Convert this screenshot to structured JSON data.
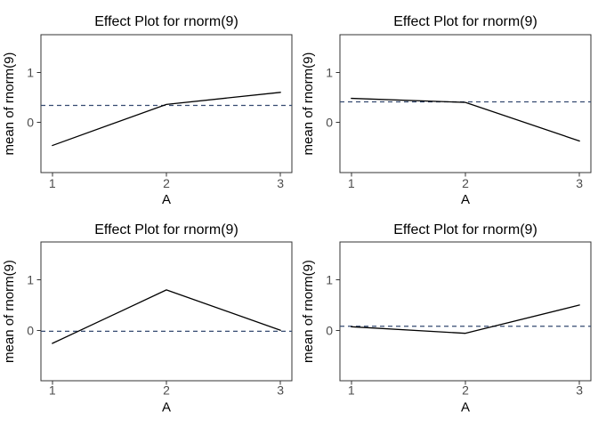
{
  "colors": {
    "background": "#ffffff",
    "panel_border": "#333333",
    "tick_mark": "#333333",
    "tick_label": "#4d4d4d",
    "text": "#000000",
    "effect_line": "#000000",
    "mean_line": "#344a70"
  },
  "chart_data": [
    {
      "type": "line",
      "panel": "top-left",
      "title": "Effect Plot for rnorm(9)",
      "xlabel": "A",
      "ylabel": "mean of rnorm(9)",
      "x": [
        1,
        2,
        3
      ],
      "xtick_labels": [
        "1",
        "2",
        "3"
      ],
      "values": [
        -0.46,
        0.36,
        0.6
      ],
      "mean_line": 0.34,
      "yticks": [
        0,
        1
      ],
      "ytick_labels": [
        "0",
        "1"
      ],
      "xlim": [
        0.9,
        3.1
      ],
      "ylim": [
        -1.0,
        1.75
      ],
      "grid": false,
      "legend": false,
      "line_style": "solid black",
      "mean_line_style": "dashed dark-blue horizontal"
    },
    {
      "type": "line",
      "panel": "top-right",
      "title": "Effect Plot for rnorm(9)",
      "xlabel": "A",
      "ylabel": "mean of rnorm(9)",
      "x": [
        1,
        2,
        3
      ],
      "xtick_labels": [
        "1",
        "2",
        "3"
      ],
      "values": [
        0.48,
        0.4,
        -0.37
      ],
      "mean_line": 0.41,
      "yticks": [
        0,
        1
      ],
      "ytick_labels": [
        "0",
        "1"
      ],
      "xlim": [
        0.9,
        3.1
      ],
      "ylim": [
        -1.0,
        1.75
      ],
      "grid": false,
      "legend": false,
      "line_style": "solid black",
      "mean_line_style": "dashed dark-blue horizontal"
    },
    {
      "type": "line",
      "panel": "bottom-left",
      "title": "Effect Plot for rnorm(9)",
      "xlabel": "A",
      "ylabel": "mean of rnorm(9)",
      "x": [
        1,
        2,
        3
      ],
      "xtick_labels": [
        "1",
        "2",
        "3"
      ],
      "values": [
        -0.26,
        0.8,
        0.0
      ],
      "mean_line": -0.02,
      "yticks": [
        0,
        1
      ],
      "ytick_labels": [
        "0",
        "1"
      ],
      "xlim": [
        0.9,
        3.1
      ],
      "ylim": [
        -1.0,
        1.75
      ],
      "grid": false,
      "legend": false,
      "line_style": "solid black",
      "mean_line_style": "dashed dark-blue horizontal"
    },
    {
      "type": "line",
      "panel": "bottom-right",
      "title": "Effect Plot for rnorm(9)",
      "xlabel": "A",
      "ylabel": "mean of rnorm(9)",
      "x": [
        1,
        2,
        3
      ],
      "xtick_labels": [
        "1",
        "2",
        "3"
      ],
      "values": [
        0.07,
        -0.06,
        0.5
      ],
      "mean_line": 0.08,
      "yticks": [
        0,
        1
      ],
      "ytick_labels": [
        "0",
        "1"
      ],
      "xlim": [
        0.9,
        3.1
      ],
      "ylim": [
        -1.0,
        1.75
      ],
      "grid": false,
      "legend": false,
      "line_style": "solid black",
      "mean_line_style": "dashed dark-blue horizontal"
    }
  ]
}
